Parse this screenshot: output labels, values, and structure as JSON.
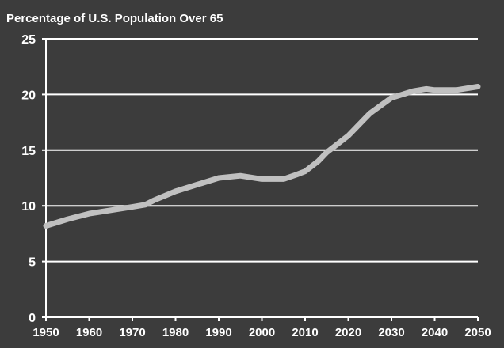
{
  "chart_data": {
    "type": "line",
    "title": "Percentage of U.S. Population Over 65",
    "xlabel": "",
    "ylabel": "",
    "xlim": [
      1950,
      2050
    ],
    "ylim": [
      0,
      25
    ],
    "x_ticks": [
      1950,
      1960,
      1970,
      1980,
      1990,
      2000,
      2010,
      2020,
      2030,
      2040,
      2050
    ],
    "y_ticks": [
      0,
      5,
      10,
      15,
      20,
      25
    ],
    "grid": "horizontal",
    "legend": "none",
    "colors": {
      "background": "#3c3c3c",
      "plot_area": "#3c3c3c",
      "gridlines": "#ffffff",
      "axis": "#ffffff",
      "text": "#ffffff",
      "series_line": "#c0c0c0"
    },
    "series": [
      {
        "x": [
          1950,
          1955,
          1960,
          1965,
          1970,
          1973,
          1975,
          1980,
          1985,
          1990,
          1995,
          2000,
          2005,
          2008,
          2010,
          2013,
          2015,
          2020,
          2025,
          2030,
          2035,
          2038,
          2040,
          2045,
          2050
        ],
        "values": [
          8.2,
          8.8,
          9.3,
          9.6,
          9.9,
          10.1,
          10.5,
          11.3,
          11.9,
          12.5,
          12.7,
          12.4,
          12.4,
          12.8,
          13.1,
          14.0,
          14.8,
          16.3,
          18.3,
          19.7,
          20.3,
          20.5,
          20.4,
          20.4,
          20.7
        ]
      }
    ]
  }
}
